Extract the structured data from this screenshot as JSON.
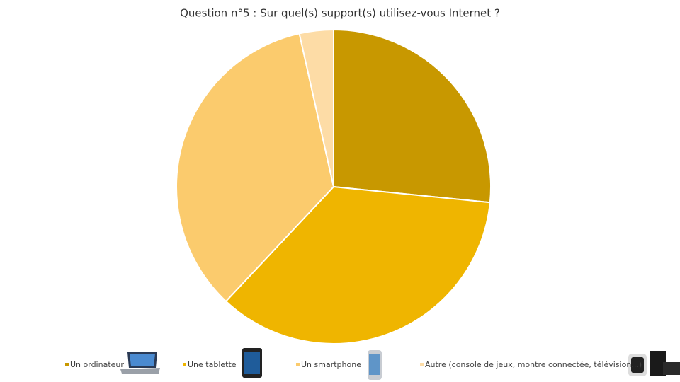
{
  "chart_data": {
    "type": "pie",
    "title": "Question n°5 : Sur quel(s) support(s) utilisez-vous Internet ?",
    "categories": [
      "Un ordinateur",
      "Une tablette",
      "Un smartphone",
      "Autre (console de jeux, montre connectée, télévision...)"
    ],
    "values": [
      26.6,
      35.4,
      34.5,
      3.5
    ],
    "colors": [
      "#c89800",
      "#efb500",
      "#fbcb6d",
      "#fddca6"
    ],
    "legend": "bottom"
  }
}
